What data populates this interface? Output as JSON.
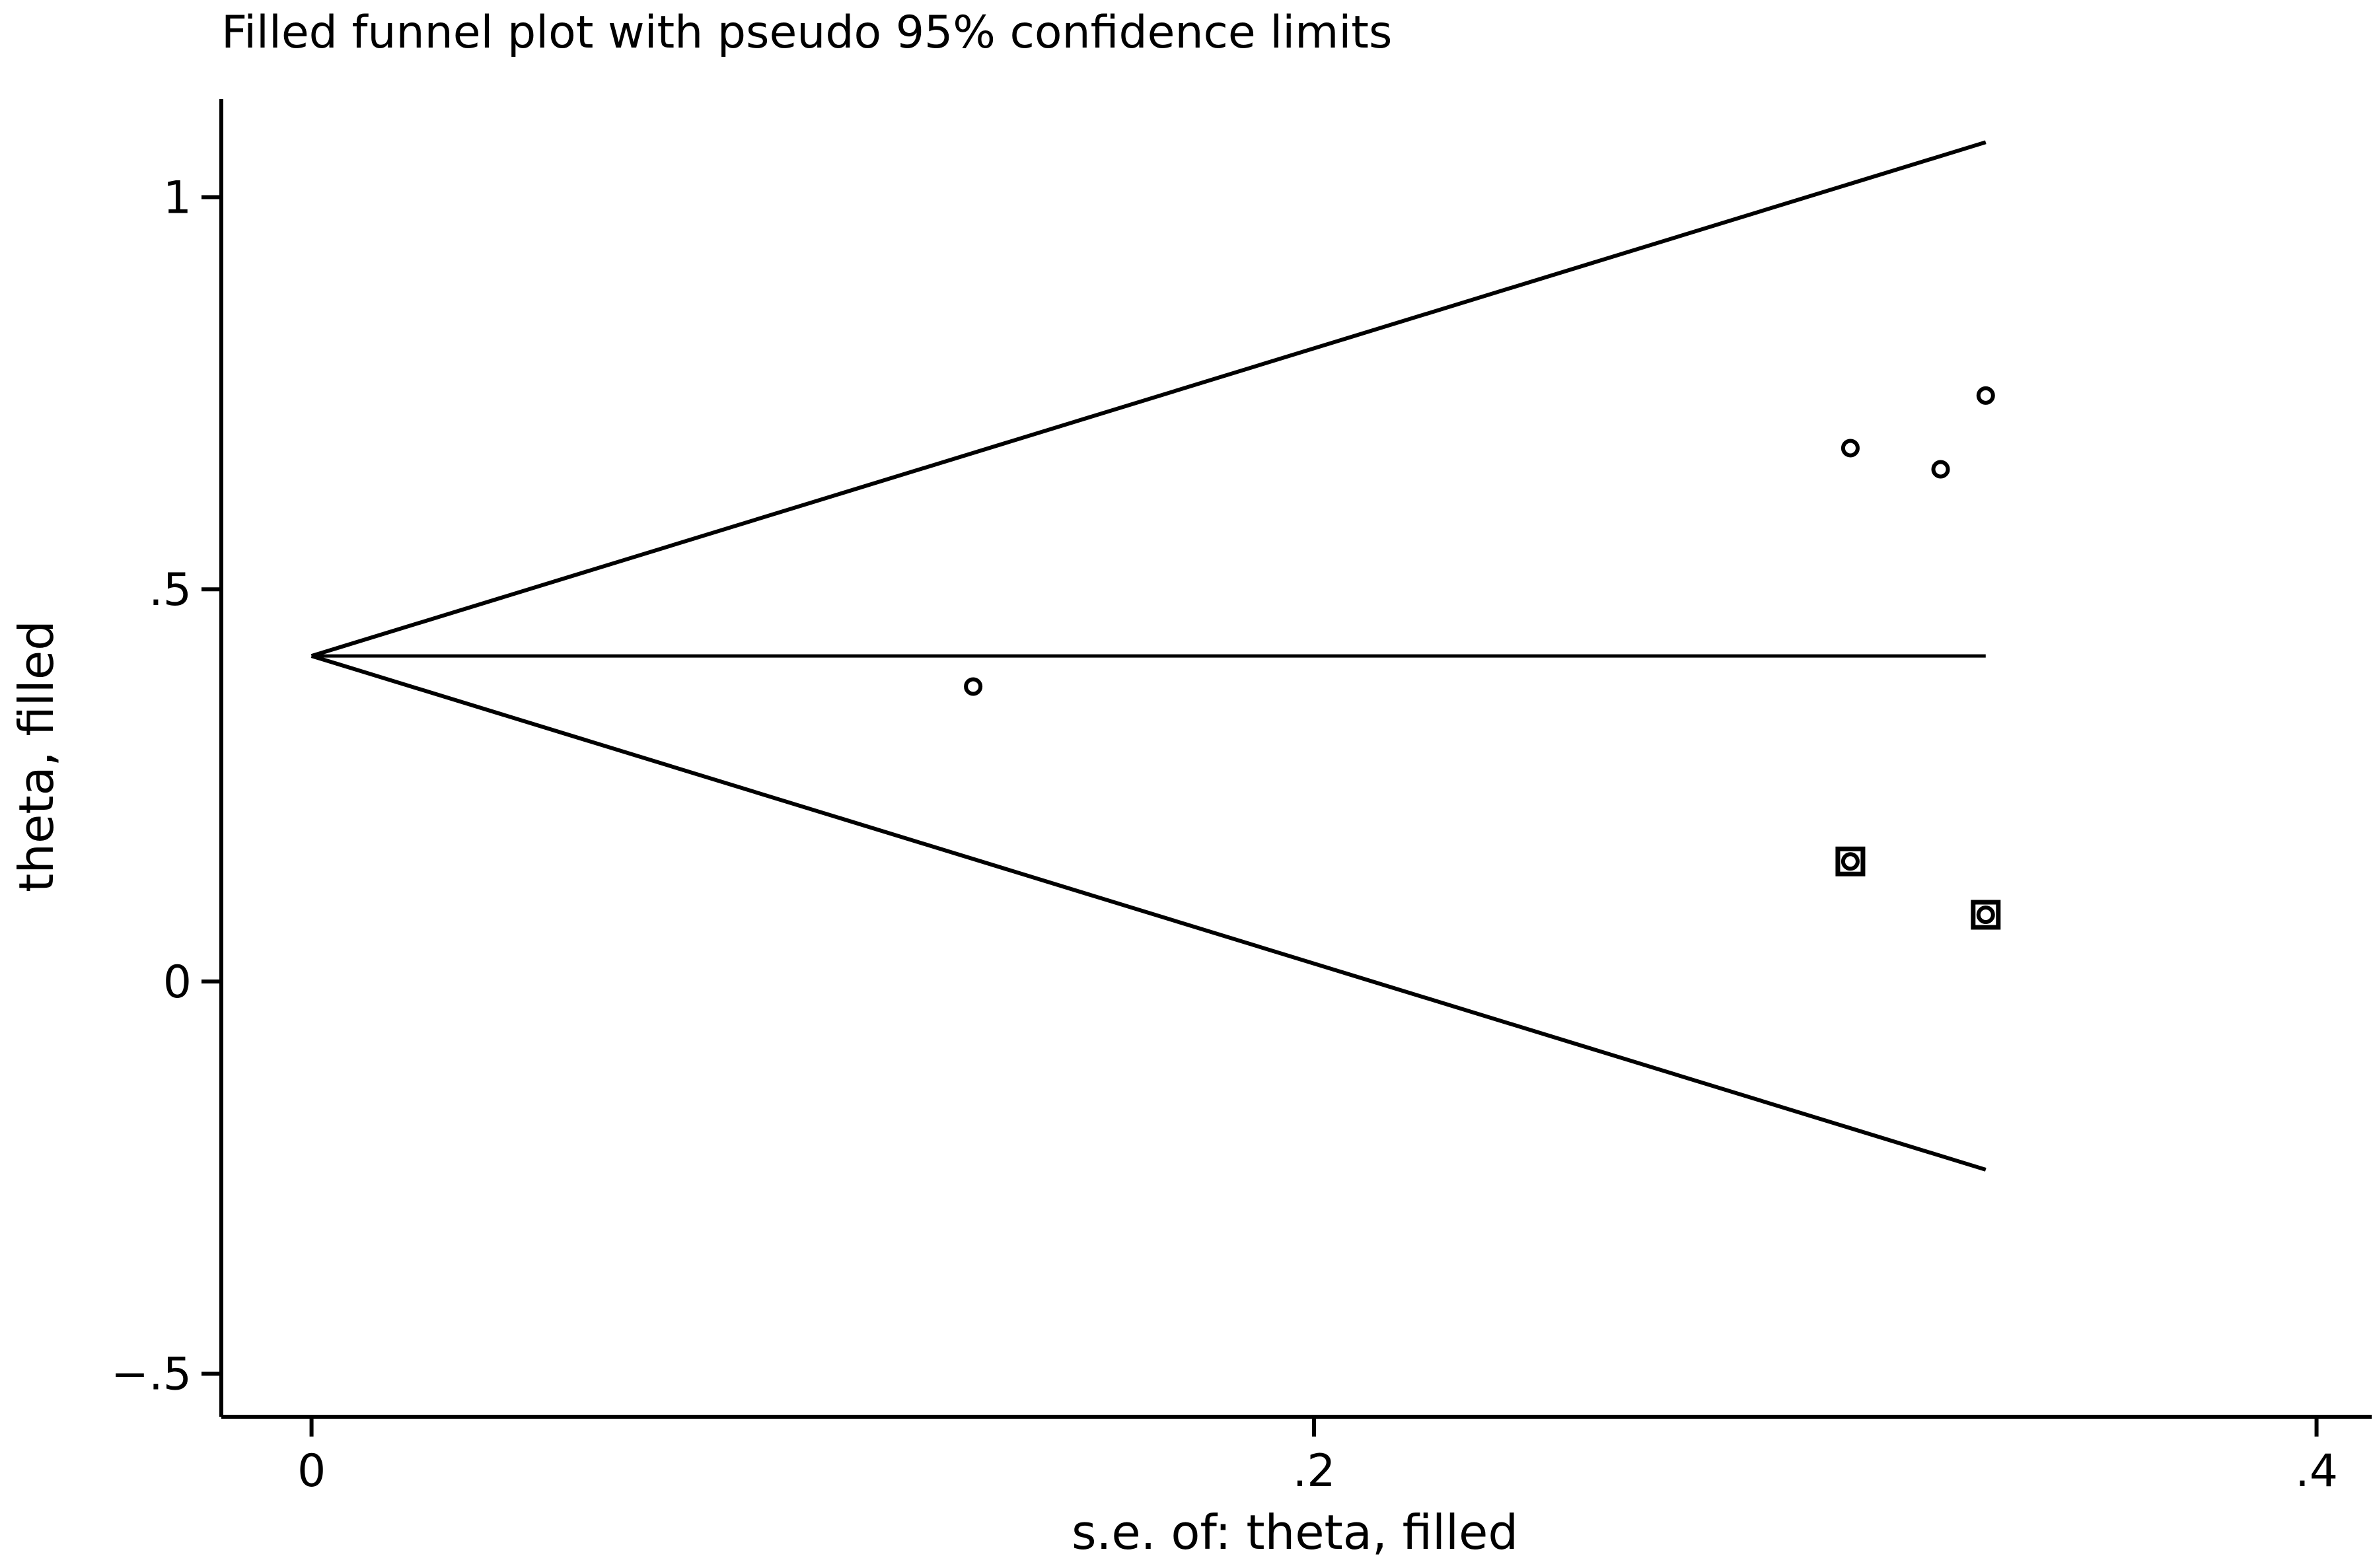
{
  "chart_data": {
    "type": "scatter",
    "title": "Filled funnel plot with pseudo 95% confidence limits",
    "xlabel": "s.e. of: theta, filled",
    "ylabel": "theta, filled",
    "xlim": [
      -0.018,
      0.411
    ],
    "ylim": [
      -0.555,
      1.125
    ],
    "x_ticks": [
      0,
      0.2,
      0.4
    ],
    "x_tick_labels": [
      "0",
      ".2",
      ".4"
    ],
    "y_ticks": [
      -0.5,
      0,
      0.5,
      1
    ],
    "y_tick_labels": [
      "−.5",
      "0",
      ".5",
      "1"
    ],
    "grid": false,
    "legend": "none",
    "pooled_estimate": 0.415,
    "confidence_limits": {
      "se_max": 0.334,
      "upper_end": 1.07,
      "lower_end": -0.24
    },
    "series": [
      {
        "marker": "circle",
        "points": [
          {
            "x": 0.132,
            "y": 0.376
          },
          {
            "x": 0.307,
            "y": 0.68
          },
          {
            "x": 0.325,
            "y": 0.653
          },
          {
            "x": 0.334,
            "y": 0.747
          },
          {
            "x": 0.307,
            "y": 0.153
          },
          {
            "x": 0.334,
            "y": 0.085
          }
        ]
      },
      {
        "marker": "square",
        "points": [
          {
            "x": 0.307,
            "y": 0.153
          },
          {
            "x": 0.334,
            "y": 0.085
          }
        ]
      }
    ],
    "colors": {
      "line": "#000000",
      "background": "#ffffff"
    }
  }
}
